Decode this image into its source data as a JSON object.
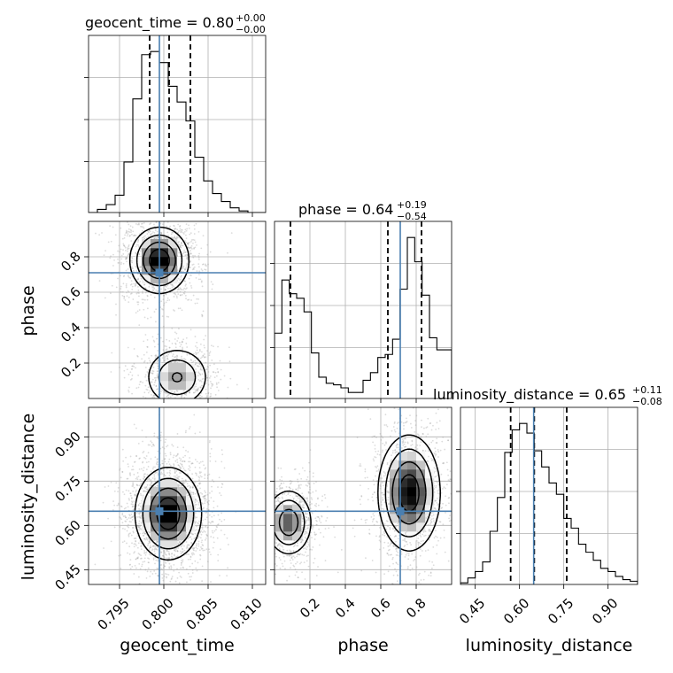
{
  "chart_data": {
    "type": "corner",
    "parameters": [
      "geocent_time",
      "phase",
      "luminosity_distance"
    ],
    "truth": {
      "geocent_time": 0.7995,
      "phase": 0.71,
      "luminosity_distance": 0.648
    },
    "ranges": {
      "geocent_time": [
        0.7915,
        0.8115
      ],
      "phase": [
        0.0,
        1.0
      ],
      "luminosity_distance": [
        0.4,
        1.0
      ]
    },
    "ticks": {
      "geocent_time": {
        "values": [
          0.795,
          0.8,
          0.805,
          0.81
        ],
        "labels": [
          "0.795",
          "0.800",
          "0.805",
          "0.810"
        ]
      },
      "phase": {
        "values": [
          0.2,
          0.4,
          0.6,
          0.8
        ],
        "labels": [
          "0.2",
          "0.4",
          "0.6",
          "0.8"
        ]
      },
      "luminosity_distance": {
        "values": [
          0.45,
          0.6,
          0.75,
          0.9
        ],
        "labels": [
          "0.45",
          "0.60",
          "0.75",
          "0.90"
        ]
      }
    },
    "titles": [
      {
        "param": "geocent_time",
        "main": "geocent_time = 0.80",
        "upper": "+0.00",
        "lower": "−0.00"
      },
      {
        "param": "phase",
        "main": "phase = 0.64",
        "upper": "+0.19",
        "lower": "−0.54"
      },
      {
        "param": "luminosity_distance",
        "main": "luminosity_distance = 0.65",
        "upper": "+0.11",
        "lower": "−0.08"
      }
    ],
    "axis_labels": {
      "geocent_time": "geocent_time",
      "phase": "phase",
      "luminosity_distance": "luminosity_distance"
    },
    "histograms": {
      "geocent_time": {
        "bins": [
          0.7915,
          0.8115
        ],
        "counts": [
          0,
          2,
          5,
          11,
          32,
          72,
          100,
          102,
          95,
          80,
          70,
          58,
          35,
          20,
          12,
          7,
          3,
          1,
          0,
          0
        ],
        "quantiles": [
          0.7984,
          0.8006,
          0.803
        ]
      },
      "phase": {
        "bins": [
          0.0,
          1.0
        ],
        "counts": [
          43,
          78,
          69,
          66,
          57,
          30,
          14,
          10,
          9,
          7,
          4,
          4,
          12,
          17,
          27,
          29,
          39,
          72,
          106,
          90,
          68,
          40,
          32,
          32
        ],
        "quantiles": [
          0.09,
          0.64,
          0.83
        ]
      },
      "luminosity_distance": {
        "bins": [
          0.4,
          1.0
        ],
        "counts": [
          1,
          4,
          8,
          14,
          33,
          54,
          82,
          96,
          100,
          94,
          83,
          73,
          63,
          56,
          41,
          35,
          25,
          20,
          15,
          10,
          8,
          5,
          3,
          2
        ],
        "quantiles": [
          0.57,
          0.65,
          0.76
        ]
      }
    },
    "density_2d": [
      {
        "x": "geocent_time",
        "y": "phase",
        "blobs": [
          {
            "cx": 0.7995,
            "cy": 0.78,
            "sx": 0.0016,
            "sy": 0.09,
            "w": 1.0
          },
          {
            "cx": 0.8015,
            "cy": 0.12,
            "sx": 0.0018,
            "sy": 0.085,
            "w": 0.55
          }
        ]
      },
      {
        "x": "geocent_time",
        "y": "luminosity_distance",
        "blobs": [
          {
            "cx": 0.8005,
            "cy": 0.64,
            "sx": 0.0018,
            "sy": 0.075,
            "w": 1.0
          }
        ]
      },
      {
        "x": "phase",
        "y": "luminosity_distance",
        "blobs": [
          {
            "cx": 0.08,
            "cy": 0.61,
            "sx": 0.065,
            "sy": 0.055,
            "w": 0.75
          },
          {
            "cx": 0.76,
            "cy": 0.71,
            "sx": 0.085,
            "sy": 0.095,
            "w": 1.0
          }
        ]
      }
    ],
    "contour_levels": [
      0.12,
      0.3,
      0.55,
      0.82
    ],
    "grid": true
  },
  "colors": {
    "hist": "#000000",
    "truth": "#4a7fb0",
    "grid": "#b0b0b0",
    "scatter": "#9a9a9a"
  }
}
